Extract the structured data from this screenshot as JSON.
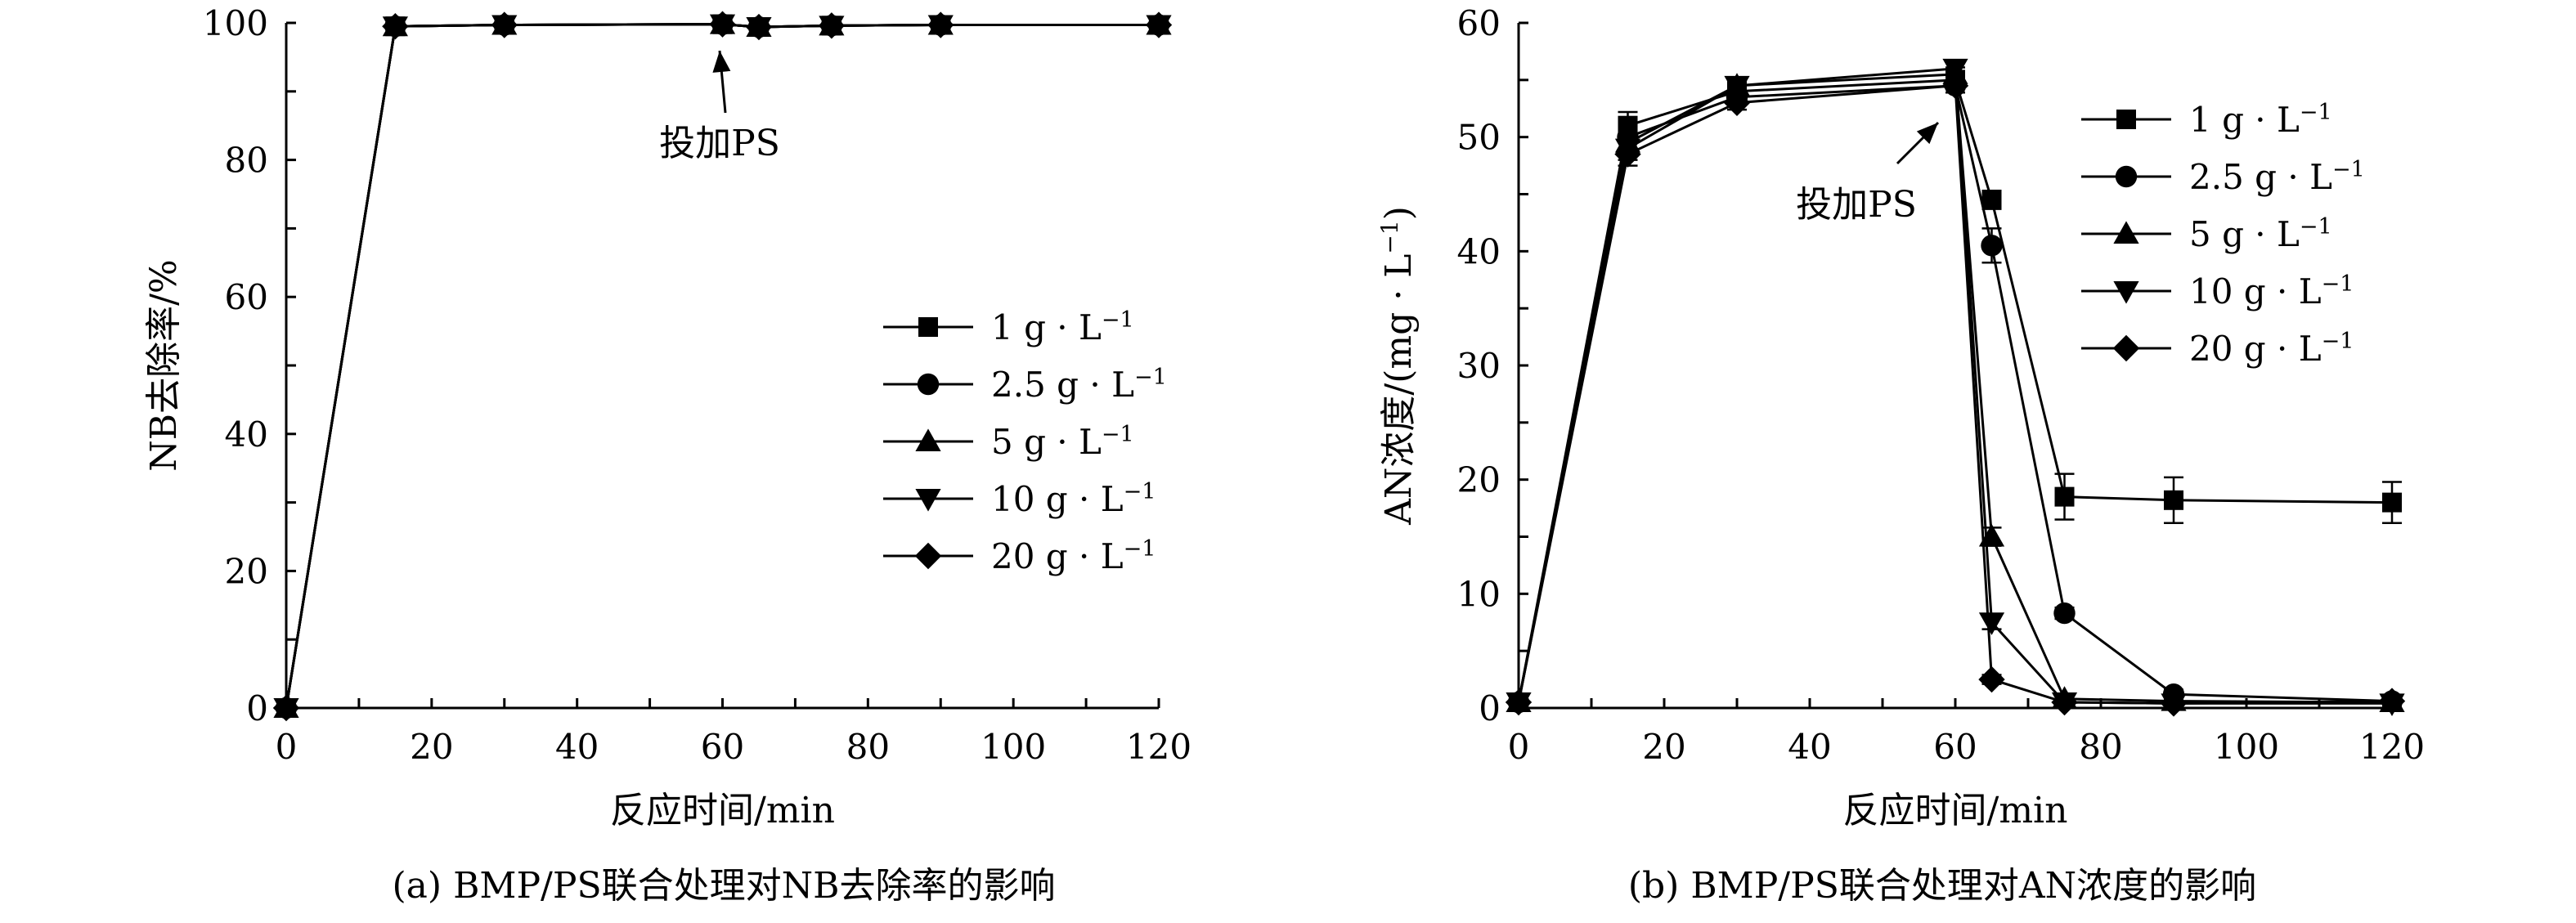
{
  "chart_data": [
    {
      "type": "line",
      "caption": "(a) BMP/PS联合处理对NB去除率的影响",
      "xlabel": "反应时间/min",
      "ylabel": "NB去除率/%",
      "xlim": [
        0,
        120
      ],
      "ylim": [
        0,
        100
      ],
      "xticks": [
        0,
        20,
        40,
        60,
        80,
        100,
        120
      ],
      "yticks": [
        0,
        20,
        40,
        60,
        80,
        100
      ],
      "grid": false,
      "legend_position": "middle-right",
      "annotation": {
        "text": "投加PS",
        "x": 60,
        "y": 100
      },
      "series": [
        {
          "name": "1 g · L",
          "marker": "square",
          "x": [
            0,
            15,
            30,
            60,
            65,
            75,
            90,
            120
          ],
          "y": [
            0,
            99.5,
            99.7,
            99.8,
            99.4,
            99.6,
            99.7,
            99.7
          ]
        },
        {
          "name": "2.5 g · L",
          "marker": "circle",
          "x": [
            0,
            15,
            30,
            60,
            65,
            75,
            90,
            120
          ],
          "y": [
            0,
            99.5,
            99.7,
            99.8,
            99.4,
            99.6,
            99.7,
            99.7
          ]
        },
        {
          "name": "5 g · L",
          "marker": "triangle-up",
          "x": [
            0,
            15,
            30,
            60,
            65,
            75,
            90,
            120
          ],
          "y": [
            0,
            99.5,
            99.7,
            99.8,
            99.4,
            99.6,
            99.7,
            99.7
          ]
        },
        {
          "name": "10 g · L",
          "marker": "triangle-down",
          "x": [
            0,
            15,
            30,
            60,
            65,
            75,
            90,
            120
          ],
          "y": [
            0,
            99.5,
            99.7,
            99.8,
            99.4,
            99.6,
            99.7,
            99.7
          ]
        },
        {
          "name": "20 g · L",
          "marker": "diamond",
          "x": [
            0,
            15,
            30,
            60,
            65,
            75,
            90,
            120
          ],
          "y": [
            0,
            99.5,
            99.7,
            99.8,
            99.4,
            99.6,
            99.7,
            99.7
          ]
        }
      ]
    },
    {
      "type": "line",
      "caption": "(b) BMP/PS联合处理对AN浓度的影响",
      "xlabel": "反应时间/min",
      "ylabel_main": "AN浓度/(mg · L",
      "ylabel_close": ")",
      "superscript": "−1",
      "xlim": [
        0,
        120
      ],
      "ylim": [
        0,
        60
      ],
      "xticks": [
        0,
        20,
        40,
        60,
        80,
        100,
        120
      ],
      "yticks": [
        0,
        10,
        20,
        30,
        40,
        50,
        60
      ],
      "grid": false,
      "legend_position": "top-right",
      "annotation": {
        "text": "投加PS",
        "x": 60,
        "y": 55
      },
      "series": [
        {
          "name": "1 g · L",
          "marker": "square",
          "x": [
            0,
            15,
            30,
            60,
            65,
            75,
            90,
            120
          ],
          "y": [
            0.5,
            51.0,
            54.0,
            55.0,
            44.5,
            18.5,
            18.2,
            18.0
          ],
          "err": [
            0,
            1.2,
            0.8,
            0.8,
            0.8,
            2.0,
            2.0,
            1.8
          ]
        },
        {
          "name": "2.5 g · L",
          "marker": "circle",
          "x": [
            0,
            15,
            30,
            60,
            65,
            75,
            90,
            120
          ],
          "y": [
            0.5,
            50.0,
            53.5,
            54.5,
            40.5,
            8.3,
            1.2,
            0.6
          ],
          "err": [
            0,
            1.0,
            0.6,
            0.6,
            1.5,
            0.5,
            0.4,
            0.3
          ]
        },
        {
          "name": "5 g · L",
          "marker": "triangle-up",
          "x": [
            0,
            15,
            30,
            60,
            65,
            75,
            90,
            120
          ],
          "y": [
            0.5,
            49.5,
            54.5,
            55.5,
            15.0,
            0.8,
            0.6,
            0.5
          ],
          "err": [
            0,
            1.0,
            0.6,
            0.6,
            0.8,
            0.3,
            0.2,
            0.2
          ]
        },
        {
          "name": "10 g · L",
          "marker": "triangle-down",
          "x": [
            0,
            15,
            30,
            60,
            65,
            75,
            90,
            120
          ],
          "y": [
            0.5,
            49.0,
            54.5,
            56.0,
            7.5,
            0.5,
            0.4,
            0.4
          ],
          "err": [
            0,
            1.0,
            0.6,
            0.6,
            0.6,
            0.2,
            0.2,
            0.2
          ]
        },
        {
          "name": "20 g · L",
          "marker": "diamond",
          "x": [
            0,
            15,
            30,
            60,
            65,
            75,
            90,
            120
          ],
          "y": [
            0.5,
            48.5,
            53.0,
            54.5,
            2.5,
            0.5,
            0.4,
            0.6
          ],
          "err": [
            0,
            1.0,
            0.6,
            0.6,
            0.4,
            0.2,
            0.2,
            0.2
          ]
        }
      ]
    }
  ]
}
